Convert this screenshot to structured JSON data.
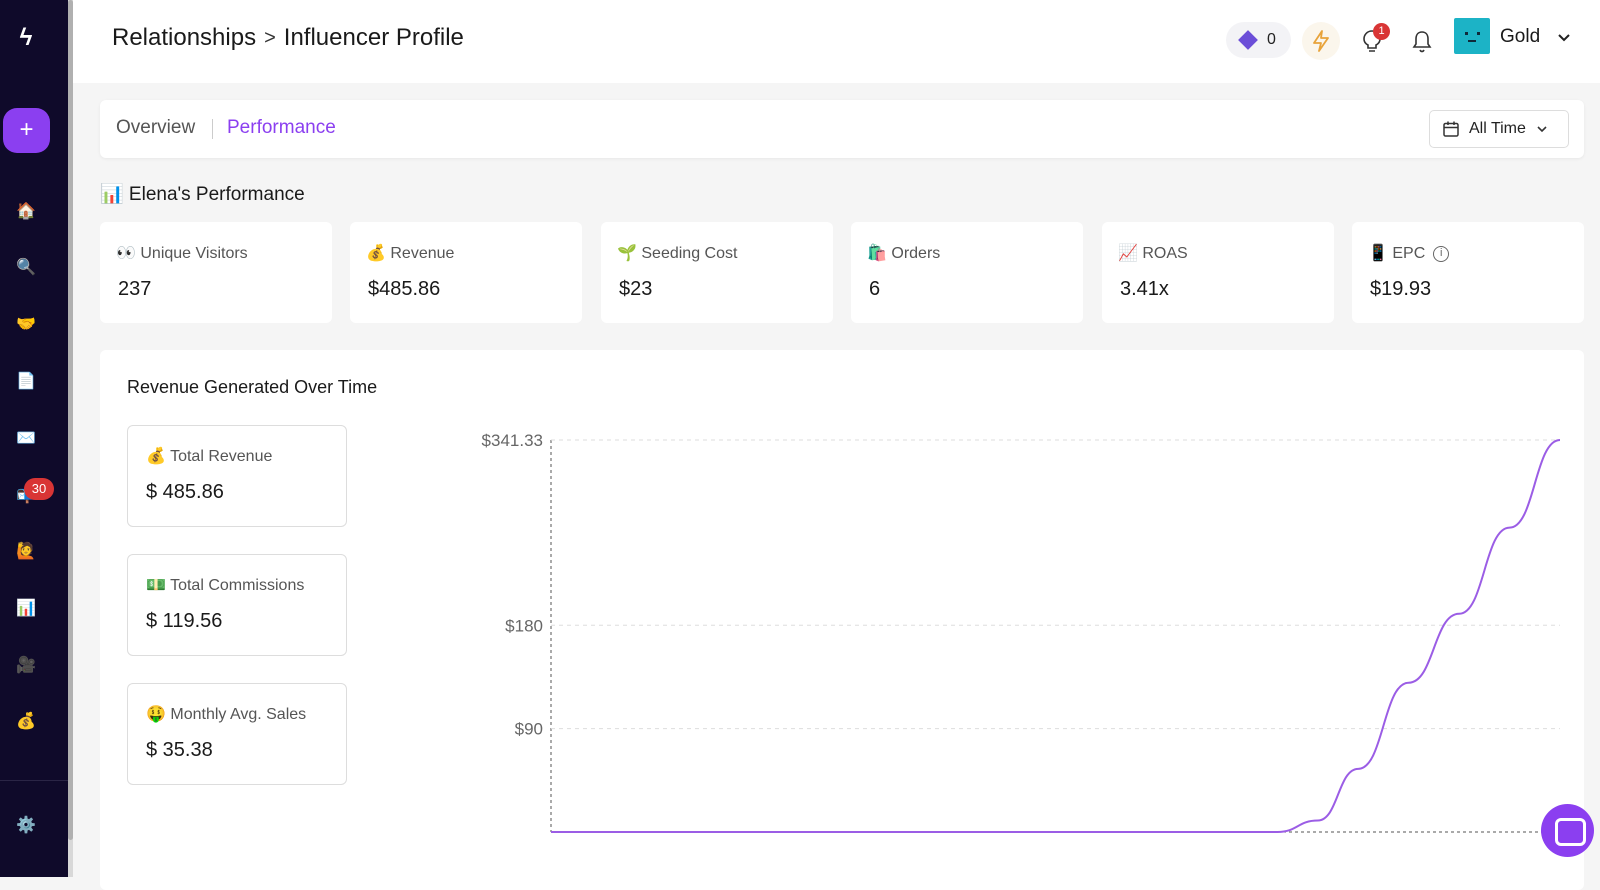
{
  "sidebar": {
    "logo": "ϟ",
    "add_label": "+",
    "items": [
      {
        "name": "home",
        "glyph": "🏠"
      },
      {
        "name": "search",
        "glyph": "🔍"
      },
      {
        "name": "relationships",
        "glyph": "🤝"
      },
      {
        "name": "documents",
        "glyph": "📄"
      },
      {
        "name": "mail",
        "glyph": "✉️"
      },
      {
        "name": "inbox",
        "glyph": "📬"
      },
      {
        "name": "people",
        "glyph": "🙋"
      },
      {
        "name": "analytics",
        "glyph": "📊"
      },
      {
        "name": "content",
        "glyph": "🎥"
      },
      {
        "name": "payments",
        "glyph": "💰"
      }
    ],
    "inbox_badge": "30",
    "settings_glyph": "⚙️"
  },
  "header": {
    "breadcrumb_parent": "Relationships",
    "breadcrumb_sep": ">",
    "breadcrumb_current": "Influencer Profile",
    "credits": "0",
    "bulb_badge": "1",
    "user_name": "Gold"
  },
  "tabs": {
    "overview": "Overview",
    "performance": "Performance",
    "date_range": "All Time"
  },
  "performance": {
    "title": "📊 Elena's Performance",
    "stats": [
      {
        "label": "👀 Unique Visitors",
        "value": "237"
      },
      {
        "label": "💰 Revenue",
        "value": "$485.86"
      },
      {
        "label": "🌱 Seeding Cost",
        "value": "$23"
      },
      {
        "label": "🛍️ Orders",
        "value": "6"
      },
      {
        "label": "📈 ROAS",
        "value": "3.41x"
      },
      {
        "label": "📱 EPC",
        "value": "$19.93"
      }
    ]
  },
  "revenue_chart": {
    "title": "Revenue Generated Over Time",
    "summary": [
      {
        "label": "💰 Total Revenue",
        "value": "$ 485.86"
      },
      {
        "label": "💵 Total Commissions",
        "value": "$ 119.56"
      },
      {
        "label": "🤑 Monthly Avg. Sales",
        "value": "$ 35.38"
      }
    ]
  },
  "chart_data": {
    "type": "line",
    "title": "Revenue Generated Over Time",
    "xlabel": "",
    "ylabel": "",
    "y_ticks": [
      "$341.33",
      "$180",
      "$90"
    ],
    "y_tick_values": [
      341.33,
      180,
      90
    ],
    "ylim": [
      0,
      341.33
    ],
    "series": [
      {
        "color": "#9b5de5",
        "x": [
          0,
          0.1,
          0.2,
          0.3,
          0.4,
          0.5,
          0.6,
          0.7,
          0.72,
          0.76,
          0.8,
          0.85,
          0.9,
          0.95,
          1.0
        ],
        "y": [
          0,
          0,
          0,
          0,
          0,
          0,
          0,
          0,
          0,
          10,
          55,
          130,
          190,
          265,
          341.33
        ]
      }
    ],
    "grid": true,
    "legend": "none"
  }
}
